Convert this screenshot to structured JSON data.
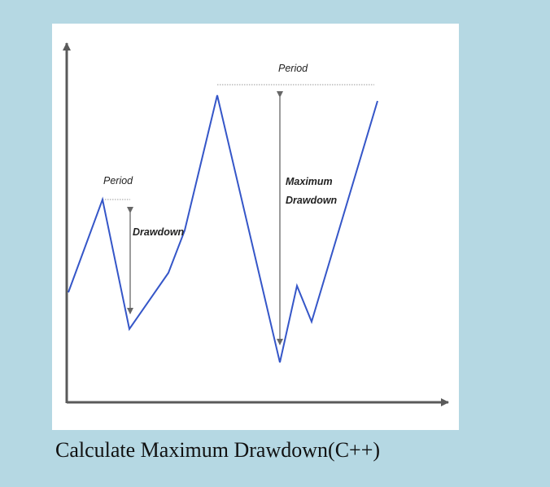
{
  "diagram": {
    "period_small_label": "Period",
    "drawdown_label": "Drawdown",
    "period_large_label": "Period",
    "max_drawdown_label_line1": "Maximum",
    "max_drawdown_label_line2": "Drawdown"
  },
  "caption": "Calculate Maximum Drawdown(C++)",
  "colors": {
    "background": "#b5d8e3",
    "panel": "#ffffff",
    "price_line": "#3556c8",
    "axis": "#5a5a5a",
    "arrow": "#666666"
  }
}
